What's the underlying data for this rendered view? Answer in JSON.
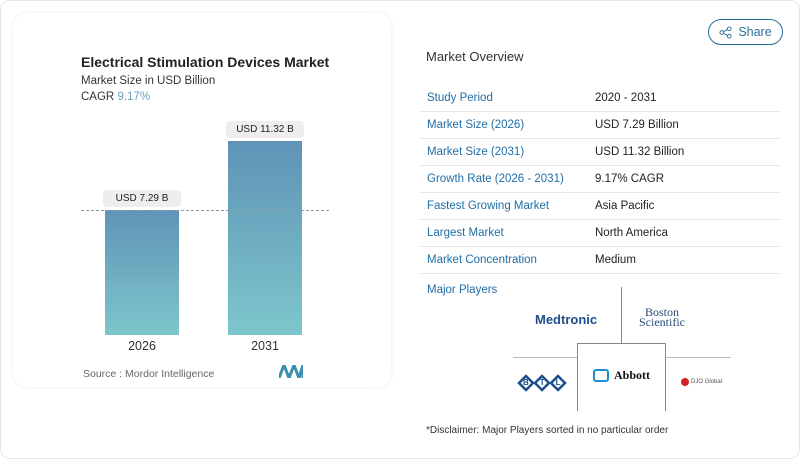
{
  "header": {
    "share_label": "Share",
    "share_icon": "share-icon"
  },
  "chart": {
    "title": "Electrical Stimulation Devices Market",
    "subtitle": "Market Size in USD Billion",
    "cagr_label": "CAGR",
    "cagr_value": "9.17%",
    "source": "Source :  Mordor Intelligence",
    "colors": {
      "bar_top": "#5f93b7",
      "bar_bottom": "#7dc6cb"
    }
  },
  "chart_data": {
    "type": "bar",
    "categories": [
      "2026",
      "2031"
    ],
    "values": [
      7.29,
      11.32
    ],
    "data_labels": [
      "USD 7.29 B",
      "USD 11.32 B"
    ],
    "title": "Electrical Stimulation Devices Market",
    "ylabel": "Market Size in USD Billion",
    "ylim": [
      0,
      11.32
    ],
    "grid": false
  },
  "overview": {
    "title": "Market Overview",
    "rows": [
      {
        "k": "Study Period",
        "v": "2020 - 2031"
      },
      {
        "k": "Market Size (2026)",
        "v": "USD 7.29 Billion"
      },
      {
        "k": "Market Size (2031)",
        "v": "USD 11.32 Billion"
      },
      {
        "k": "Growth Rate (2026 - 2031)",
        "v": "9.17% CAGR"
      },
      {
        "k": "Fastest Growing Market",
        "v": "Asia Pacific"
      },
      {
        "k": "Largest Market",
        "v": "North America"
      },
      {
        "k": "Market Concentration",
        "v": "Medium"
      }
    ],
    "major_players_label": "Major Players",
    "players": [
      "Medtronic",
      "Boston Scientific",
      "BTL",
      "Abbott",
      "DJO Global"
    ],
    "disclaimer": "*Disclaimer: Major Players sorted in no particular order"
  }
}
